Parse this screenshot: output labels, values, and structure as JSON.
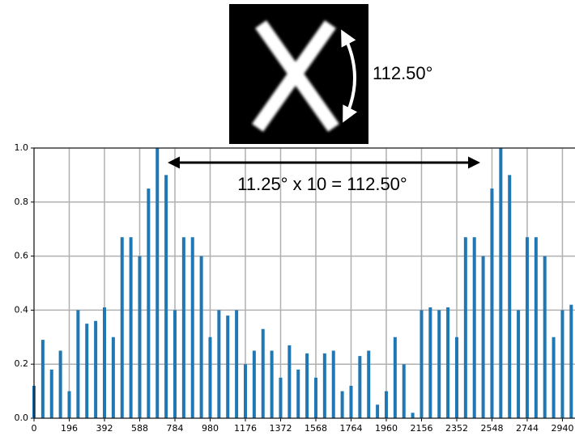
{
  "image": {
    "angle_label": "112.50°"
  },
  "chart_data": {
    "type": "bar",
    "annotation": "11.25° x 10 = 112.50°",
    "color": "#1f77b4",
    "grid": true,
    "x": [
      0,
      49,
      98,
      147,
      196,
      245,
      294,
      343,
      392,
      441,
      490,
      539,
      588,
      637,
      686,
      735,
      784,
      833,
      882,
      931,
      980,
      1029,
      1078,
      1127,
      1176,
      1225,
      1274,
      1323,
      1372,
      1421,
      1470,
      1519,
      1568,
      1617,
      1666,
      1715,
      1764,
      1813,
      1862,
      1911,
      1960,
      2009,
      2058,
      2107,
      2156,
      2205,
      2254,
      2303,
      2352,
      2401,
      2450,
      2499,
      2548,
      2597,
      2646,
      2695,
      2744,
      2793,
      2842,
      2891,
      2940,
      2989
    ],
    "values": [
      0.12,
      0.29,
      0.18,
      0.25,
      0.1,
      0.4,
      0.35,
      0.36,
      0.41,
      0.3,
      0.67,
      0.67,
      0.6,
      0.85,
      1.0,
      0.9,
      0.4,
      0.67,
      0.67,
      0.6,
      0.3,
      0.4,
      0.38,
      0.4,
      0.2,
      0.25,
      0.33,
      0.25,
      0.15,
      0.27,
      0.18,
      0.24,
      0.15,
      0.24,
      0.25,
      0.1,
      0.12,
      0.23,
      0.25,
      0.05,
      0.1,
      0.3,
      0.2,
      0.02,
      0.4,
      0.41,
      0.4,
      0.41,
      0.3,
      0.67,
      0.67,
      0.6,
      0.85,
      1.0,
      0.9,
      0.4,
      0.67,
      0.67,
      0.6,
      0.3,
      0.4,
      0.42
    ],
    "xlim": [
      0,
      3010
    ],
    "ylim": [
      0,
      1
    ],
    "xticks": [
      0,
      196,
      392,
      588,
      784,
      980,
      1176,
      1372,
      1568,
      1764,
      1960,
      2156,
      2352,
      2548,
      2744,
      2940
    ],
    "yticks": [
      {
        "value": 0,
        "label": "0.0"
      },
      0.2,
      0.4,
      0.6,
      0.8,
      {
        "value": 1,
        "label": "1.0"
      }
    ]
  }
}
